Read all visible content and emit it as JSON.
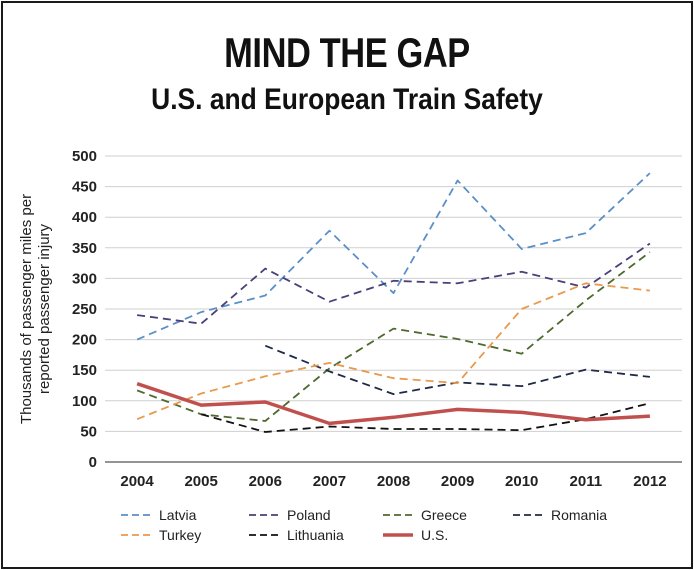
{
  "header": {
    "title": "MIND THE GAP",
    "subtitle": "U.S. and European Train Safety"
  },
  "chart_data": {
    "type": "line",
    "title": "MIND THE GAP",
    "subtitle": "U.S. and European Train Safety",
    "xlabel": "",
    "ylabel": "Thousands of passenger miles per reported passenger injury",
    "ylabel_lines": [
      "Thousands of passenger miles per",
      "reported passenger injury"
    ],
    "categories": [
      "2004",
      "2005",
      "2006",
      "2007",
      "2008",
      "2009",
      "2010",
      "2011",
      "2012"
    ],
    "y_ticks": [
      "0",
      "50",
      "100",
      "150",
      "200",
      "250",
      "300",
      "350",
      "400",
      "450",
      "500"
    ],
    "ylim": [
      0,
      500
    ],
    "grid": "horizontal",
    "legend_placement": "bottom",
    "series": [
      {
        "name": "Latvia",
        "color": "#5b8fc7",
        "dash": "dashed",
        "values": [
          200,
          245,
          272,
          378,
          276,
          460,
          348,
          374,
          472
        ]
      },
      {
        "name": "Poland",
        "color": "#4a3f7a",
        "dash": "dashed",
        "values": [
          240,
          226,
          316,
          262,
          296,
          292,
          311,
          285,
          357
        ]
      },
      {
        "name": "Greece",
        "color": "#4e6a2e",
        "dash": "dashed",
        "values": [
          117,
          78,
          67,
          153,
          218,
          201,
          177,
          264,
          343
        ]
      },
      {
        "name": "Romania",
        "color": "#1f2a48",
        "dash": "dashed",
        "values": [
          null,
          null,
          190,
          148,
          111,
          130,
          124,
          151,
          139
        ]
      },
      {
        "name": "Turkey",
        "color": "#e89a4c",
        "dash": "dashed",
        "values": [
          70,
          112,
          140,
          162,
          137,
          129,
          250,
          292,
          280
        ]
      },
      {
        "name": "Lithuania",
        "color": "#111111",
        "dash": "dashed",
        "values": [
          null,
          78,
          49,
          58,
          54,
          54,
          52,
          70,
          96
        ]
      },
      {
        "name": "U.S.",
        "color": "#c0504d",
        "dash": "solid",
        "values": [
          128,
          93,
          98,
          63,
          73,
          86,
          81,
          69,
          75
        ]
      }
    ]
  }
}
